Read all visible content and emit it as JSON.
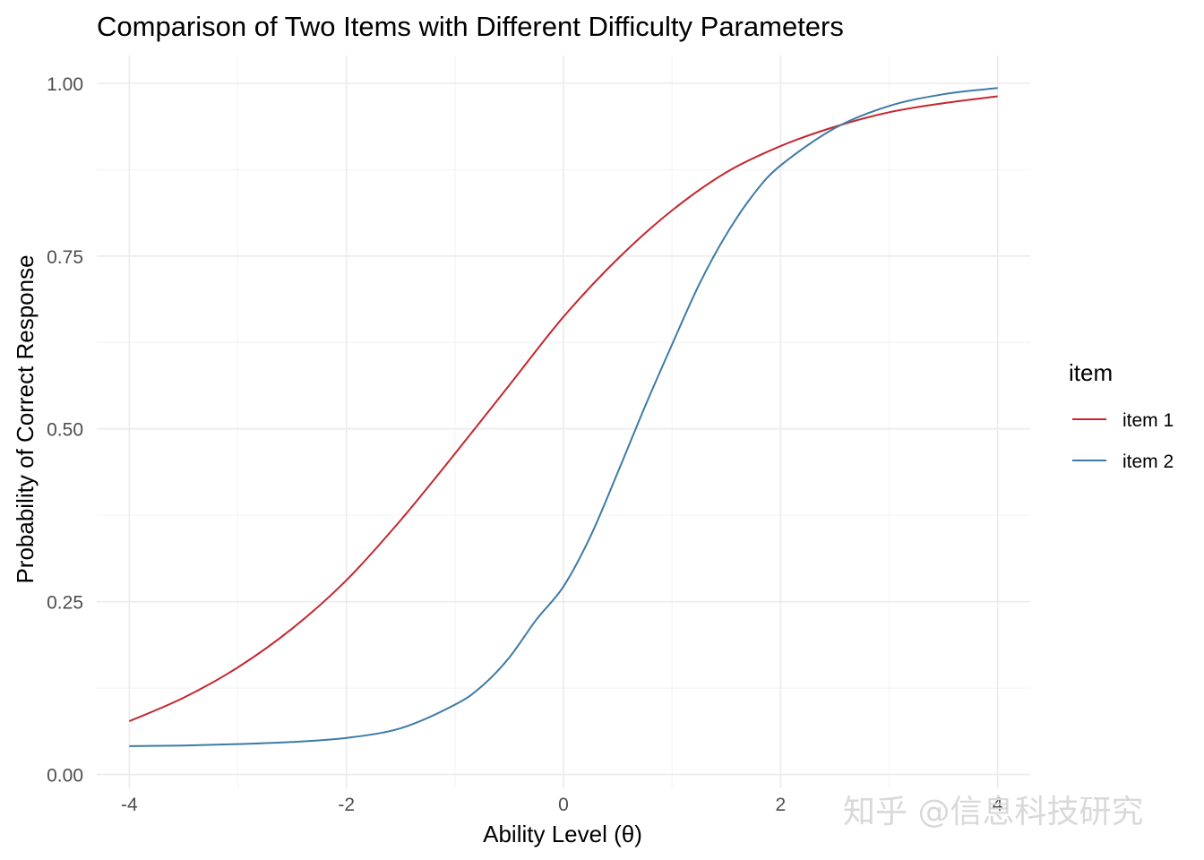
{
  "chart_data": {
    "type": "line",
    "title": "Comparison of Two Items with Different Difficulty Parameters",
    "xlabel": "Ability Level (θ)",
    "ylabel": "Probability of Correct Response",
    "xlim": [
      -4.3,
      4.3
    ],
    "ylim": [
      -0.02,
      1.04
    ],
    "x_ticks": [
      -4,
      -2,
      0,
      2,
      4
    ],
    "x_tick_labels": [
      "-4",
      "-2",
      "0",
      "2",
      "4"
    ],
    "y_ticks": [
      0,
      0.25,
      0.5,
      0.75,
      1
    ],
    "y_tick_labels": [
      "0.00",
      "0.25",
      "0.50",
      "0.75",
      "1.00"
    ],
    "grid": true,
    "legend": {
      "title": "item",
      "position": "right"
    },
    "series": [
      {
        "name": "item 1",
        "color": "#c4272f",
        "x": [
          -4.0,
          -3.5,
          -3.0,
          -2.5,
          -2.0,
          -1.5,
          -1.0,
          -0.5,
          0.0,
          0.5,
          1.0,
          1.5,
          2.0,
          2.5,
          3.0,
          3.5,
          4.0
        ],
        "y": [
          0.077,
          0.111,
          0.155,
          0.211,
          0.281,
          0.368,
          0.464,
          0.563,
          0.662,
          0.746,
          0.816,
          0.871,
          0.909,
          0.937,
          0.958,
          0.971,
          0.981
        ]
      },
      {
        "name": "item 2",
        "color": "#3d7ba6",
        "x": [
          -4.0,
          -3.5,
          -3.0,
          -2.5,
          -2.0,
          -1.5,
          -1.0,
          -0.75,
          -0.5,
          -0.25,
          0.0,
          0.25,
          0.5,
          0.75,
          1.0,
          1.25,
          1.5,
          1.75,
          2.0,
          2.5,
          3.0,
          3.5,
          4.0
        ],
        "y": [
          0.041,
          0.042,
          0.044,
          0.047,
          0.053,
          0.067,
          0.101,
          0.128,
          0.169,
          0.224,
          0.272,
          0.345,
          0.437,
          0.532,
          0.622,
          0.709,
          0.781,
          0.839,
          0.881,
          0.935,
          0.967,
          0.984,
          0.993
        ]
      }
    ]
  },
  "watermark": "知乎 @信息科技研究"
}
